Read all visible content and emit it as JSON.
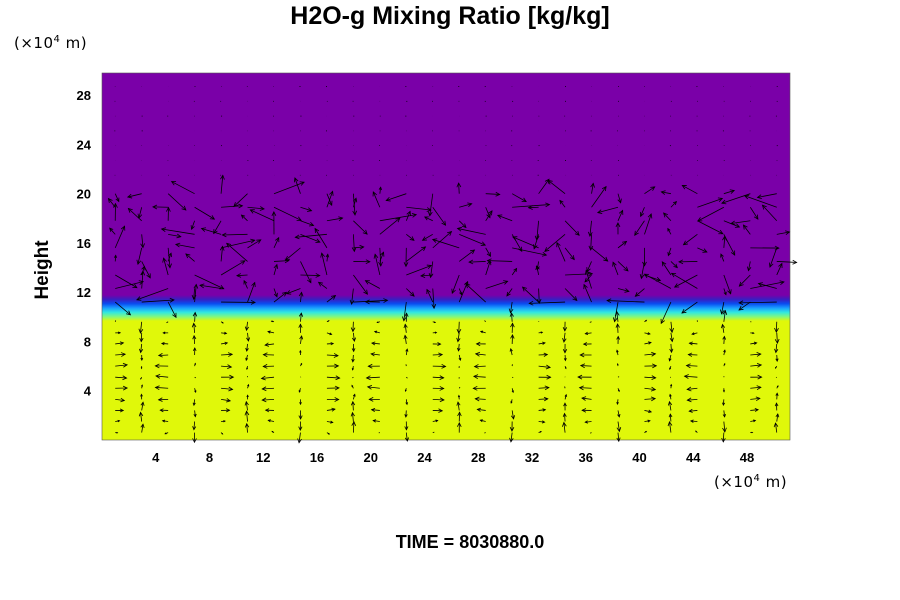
{
  "chart_data": {
    "type": "heatmap",
    "title": "H2O-g Mixing Ratio [kg/kg]",
    "ylabel": "Height",
    "xlabel": "",
    "x_unit": {
      "prefix": "(×10",
      "exp": "4",
      "suffix": " m)"
    },
    "y_unit": {
      "prefix": "(×10",
      "exp": "4",
      "suffix": " m)"
    },
    "xlim": [
      0,
      51.2
    ],
    "ylim": [
      0,
      29.8
    ],
    "x_ticks": [
      4,
      8,
      12,
      16,
      20,
      24,
      28,
      32,
      36,
      40,
      44,
      48
    ],
    "y_ticks": [
      4,
      8,
      12,
      16,
      20,
      24,
      28
    ],
    "field": {
      "upper_value_color": "#7a00a8",
      "lower_value_color": "#e0f80a",
      "transition_height": 10.8,
      "transition_colors": [
        "#7a00a8",
        "#3a1ec0",
        "#0a4cf0",
        "#1aa0ff",
        "#30e8e0",
        "#80f880",
        "#e0f80a"
      ]
    },
    "vectors": {
      "color": "#000000",
      "description_layers": [
        "turbulent upper layer 11-20",
        "convective cells 0-10"
      ]
    },
    "grid": false,
    "legend": "none"
  },
  "footer": {
    "time_text": "TIME = 8030880.0"
  }
}
